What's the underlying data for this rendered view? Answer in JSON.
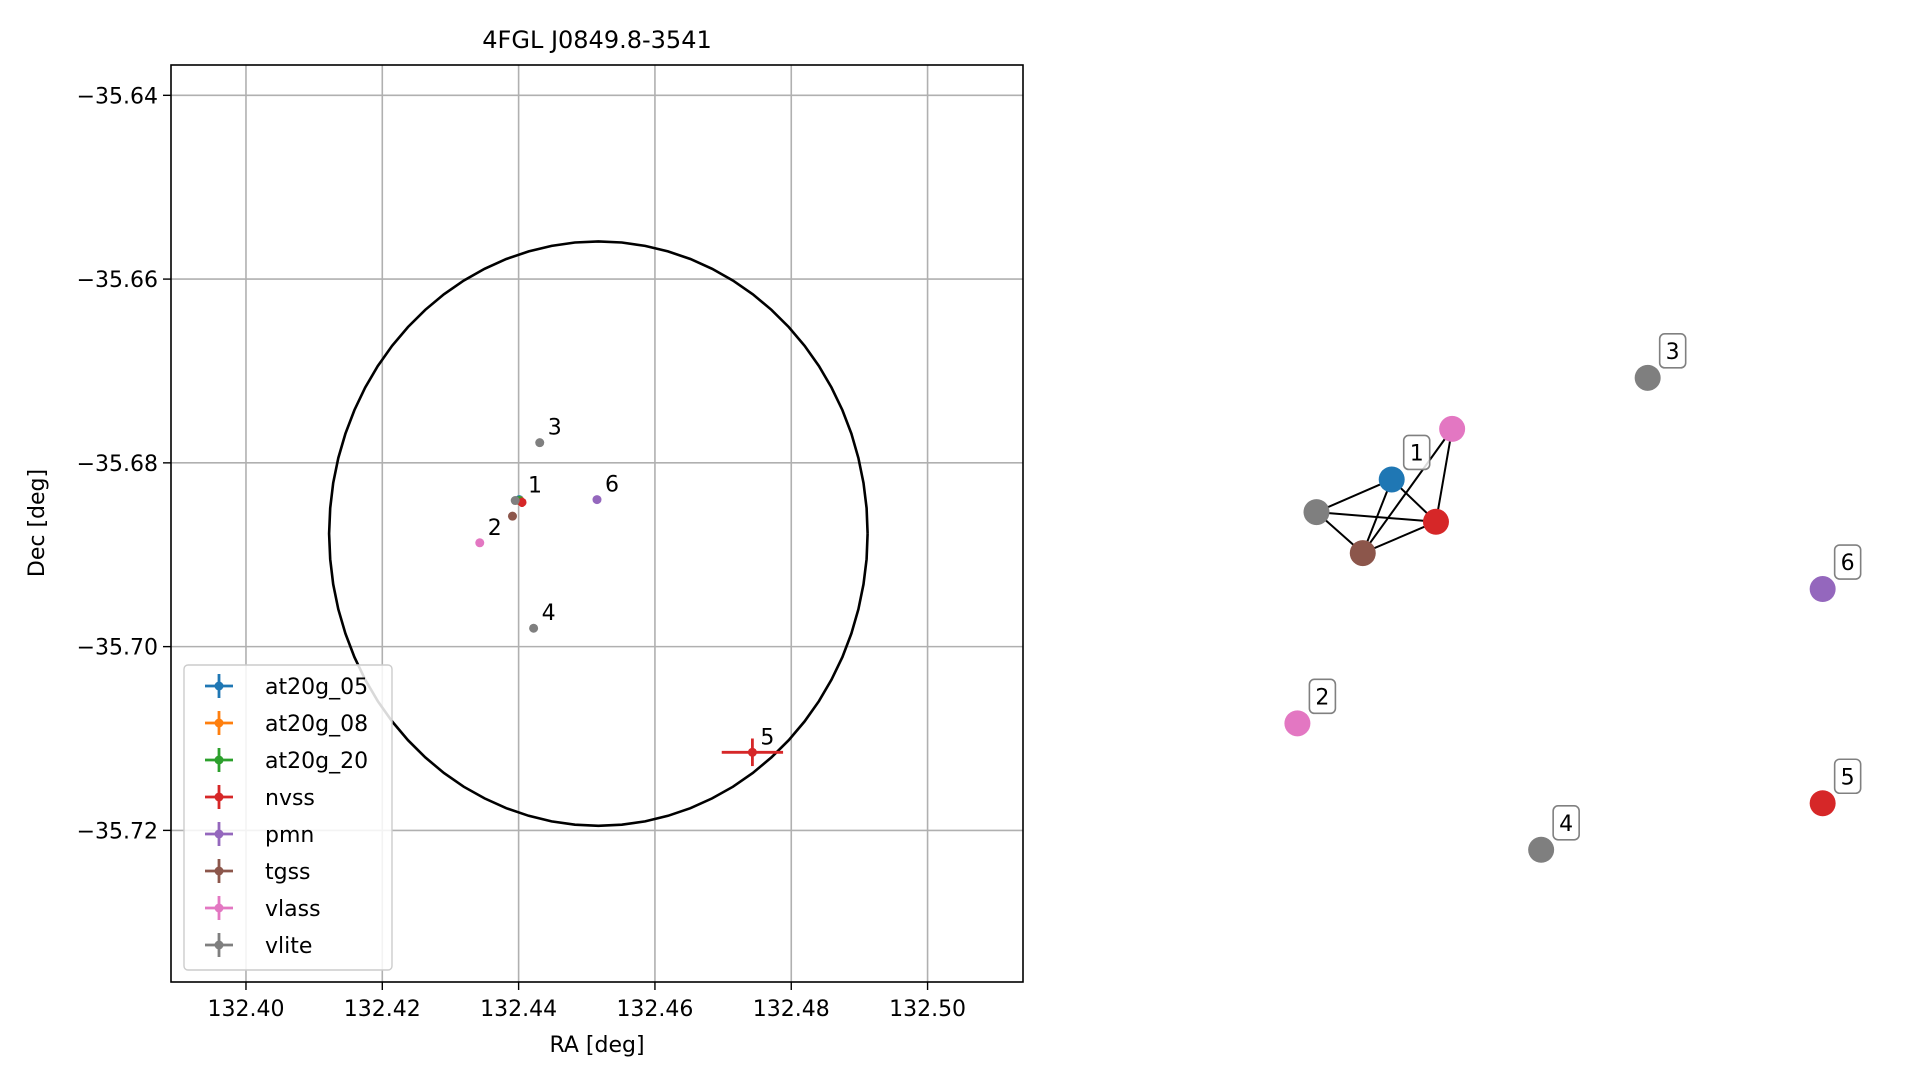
{
  "chart_data": [
    {
      "type": "scatter",
      "title": "4FGL J0849.8-3541",
      "xlabel": "RA [deg]",
      "ylabel": "Dec [deg]",
      "xlim": [
        132.389,
        132.514
      ],
      "ylim": [
        -35.7365,
        -35.6367
      ],
      "grid": true,
      "x_ticks": [
        132.4,
        132.42,
        132.44,
        132.46,
        132.48,
        132.5
      ],
      "x_tick_labels": [
        "132.40",
        "132.42",
        "132.44",
        "132.46",
        "132.48",
        "132.50"
      ],
      "y_ticks": [
        -35.64,
        -35.66,
        -35.68,
        -35.7,
        -35.72
      ],
      "y_tick_labels": [
        "−35.64",
        "−35.66",
        "−35.68",
        "−35.70",
        "−35.72"
      ],
      "ellipse": {
        "center_x": 132.4517,
        "center_y": -35.6877,
        "semi_x": 0.0395,
        "semi_y": 0.0318,
        "color": "#000000"
      },
      "legend_position": "lower-left",
      "series": [
        {
          "name": "at20g_05",
          "color": "#1f77b4",
          "points": [
            {
              "x": 132.4401,
              "y": -35.684,
              "xerr": 0.0003,
              "yerr": 0.0003
            }
          ]
        },
        {
          "name": "at20g_08",
          "color": "#ff7f0e",
          "points": [
            {
              "x": 132.4402,
              "y": -35.6841,
              "xerr": 0.0003,
              "yerr": 0.0003
            }
          ]
        },
        {
          "name": "at20g_20",
          "color": "#2ca02c",
          "points": [
            {
              "x": 132.4401,
              "y": -35.6841,
              "xerr": 0.0003,
              "yerr": 0.0003
            }
          ]
        },
        {
          "name": "nvss",
          "color": "#d62728",
          "points": [
            {
              "x": 132.4405,
              "y": -35.6843,
              "xerr": 0.0005,
              "yerr": 0.0005
            },
            {
              "x": 132.4743,
              "y": -35.7115,
              "xerr": 0.0045,
              "yerr": 0.0015
            }
          ]
        },
        {
          "name": "pmn",
          "color": "#9467bd",
          "points": [
            {
              "x": 132.4515,
              "y": -35.684,
              "xerr": 0.0,
              "yerr": 0.0
            }
          ]
        },
        {
          "name": "tgss",
          "color": "#8c564b",
          "points": [
            {
              "x": 132.4391,
              "y": -35.6858,
              "xerr": 0.0002,
              "yerr": 0.0002
            }
          ]
        },
        {
          "name": "vlass",
          "color": "#e377c2",
          "points": [
            {
              "x": 132.4343,
              "y": -35.6887,
              "xerr": 0.0,
              "yerr": 0.0
            }
          ]
        },
        {
          "name": "vlite",
          "color": "#7f7f7f",
          "points": [
            {
              "x": 132.4395,
              "y": -35.6841,
              "xerr": 0.0003,
              "yerr": 0.0003
            },
            {
              "x": 132.4431,
              "y": -35.6778,
              "xerr": 0.0,
              "yerr": 0.0
            },
            {
              "x": 132.4422,
              "y": -35.698,
              "xerr": 0.0,
              "yerr": 0.0
            }
          ]
        }
      ],
      "annotations": [
        {
          "text": "1",
          "x": 132.4402,
          "y": -35.6841
        },
        {
          "text": "2",
          "x": 132.4343,
          "y": -35.6887
        },
        {
          "text": "3",
          "x": 132.4431,
          "y": -35.6778
        },
        {
          "text": "4",
          "x": 132.4422,
          "y": -35.698
        },
        {
          "text": "5",
          "x": 132.4743,
          "y": -35.7115
        },
        {
          "text": "6",
          "x": 132.4515,
          "y": -35.684
        }
      ]
    },
    {
      "type": "network",
      "nodes": [
        {
          "id": "n_blue",
          "color": "#1f77b4",
          "x": 0.2232,
          "y": 0.3565,
          "label": "1"
        },
        {
          "id": "n_pink_top",
          "color": "#e377c2",
          "x": 0.3226,
          "y": 0.2736,
          "label": ""
        },
        {
          "id": "n_red_top",
          "color": "#d62728",
          "x": 0.296,
          "y": 0.4259,
          "label": ""
        },
        {
          "id": "n_grey_left",
          "color": "#7f7f7f",
          "x": 0.0995,
          "y": 0.41,
          "label": ""
        },
        {
          "id": "n_brown",
          "color": "#8c564b",
          "x": 0.1756,
          "y": 0.4772,
          "label": ""
        },
        {
          "id": "n_grey_3",
          "color": "#7f7f7f",
          "x": 0.6442,
          "y": 0.1899,
          "label": "3"
        },
        {
          "id": "n_purple",
          "color": "#9467bd",
          "x": 0.932,
          "y": 0.5361,
          "label": "6"
        },
        {
          "id": "n_pink_2",
          "color": "#e377c2",
          "x": 0.0681,
          "y": 0.7563,
          "label": "2"
        },
        {
          "id": "n_red_5",
          "color": "#d62728",
          "x": 0.932,
          "y": 0.8873,
          "label": "5"
        },
        {
          "id": "n_grey_4",
          "color": "#7f7f7f",
          "x": 0.469,
          "y": 0.9636,
          "label": "4"
        }
      ],
      "edges": [
        [
          "n_blue",
          "n_grey_left"
        ],
        [
          "n_blue",
          "n_brown"
        ],
        [
          "n_blue",
          "n_red_top"
        ],
        [
          "n_pink_top",
          "n_brown"
        ],
        [
          "n_pink_top",
          "n_red_top"
        ],
        [
          "n_grey_left",
          "n_red_top"
        ],
        [
          "n_grey_left",
          "n_brown"
        ],
        [
          "n_brown",
          "n_red_top"
        ]
      ]
    }
  ]
}
